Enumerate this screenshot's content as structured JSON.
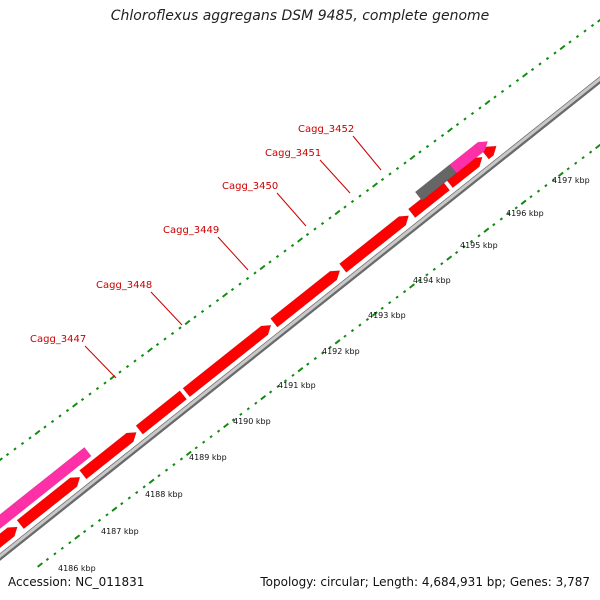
{
  "title": "Chloroflexus aggregans DSM 9485, complete genome",
  "footer": {
    "accession": "Accession: NC_011831",
    "summary": "Topology: circular; Length: 4,684,931 bp; Genes: 3,787"
  },
  "colors": {
    "backbone": "#8c8c8c",
    "cds": "#ff0000",
    "rna_or_highlight": "#ff2fa7",
    "pseudo": "#666666",
    "tick": "#128a12",
    "gene_label": "#cc0000",
    "kbp_label": "#111111"
  },
  "kbp_ticks": [
    "4186 kbp",
    "4187 kbp",
    "4188 kbp",
    "4189 kbp",
    "4190 kbp",
    "4191 kbp",
    "4192 kbp",
    "4193 kbp",
    "4194 kbp",
    "4195 kbp",
    "4196 kbp",
    "4197 kbp"
  ],
  "gene_labels": [
    "Cagg_3447",
    "Cagg_3448",
    "Cagg_3449",
    "Cagg_3450",
    "Cagg_3451",
    "Cagg_3452"
  ]
}
